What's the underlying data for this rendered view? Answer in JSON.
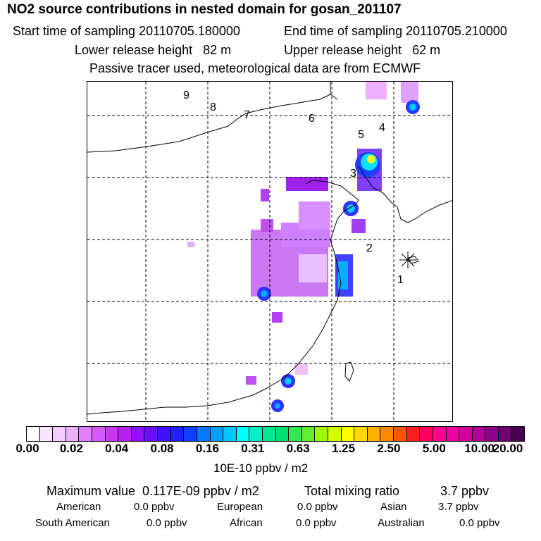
{
  "title": "NO2 source contributions in nested domain for gosan_201107",
  "header": {
    "start_label": "Start time of sampling 20110705.180000",
    "end_label": "End time of sampling 20110705.210000",
    "lower_label": "Lower release height   82 m",
    "upper_label": "Upper release height   62 m",
    "info": "Passive tracer used, meteorological data are from ECMWF"
  },
  "map": {
    "track_labels": [
      "9",
      "8",
      "7",
      "6",
      "5",
      "4",
      "3",
      "2",
      "1"
    ],
    "receptor_marker": "asterisk"
  },
  "colorbar": {
    "tick_labels": [
      "0.00",
      "0.02",
      "0.04",
      "0.08",
      "0.16",
      "0.31",
      "0.63",
      "1.25",
      "2.50",
      "5.00",
      "10.00",
      "20.00"
    ],
    "colors": [
      "#ffffff",
      "#fbe6ff",
      "#f5ccff",
      "#edb0ff",
      "#e080ff",
      "#d45cff",
      "#c838f8",
      "#b820f0",
      "#9010ff",
      "#6a10ff",
      "#4010ff",
      "#2020ff",
      "#1040ff",
      "#0878ff",
      "#00a0ff",
      "#00c8ff",
      "#00ffff",
      "#00f0c8",
      "#00e890",
      "#00e070",
      "#30e850",
      "#60f030",
      "#a0f800",
      "#d0ff00",
      "#ffff00",
      "#ffd800",
      "#ffb000",
      "#ff8800",
      "#ff5500",
      "#ff2020",
      "#ff0060",
      "#ff0090",
      "#f000a0",
      "#d000a0",
      "#b00098",
      "#900088",
      "#700070",
      "#4a0050"
    ],
    "units": "10E-10 ppbv / m2"
  },
  "summary": {
    "maximum": "Maximum value  0.117E-09 ppbv / m2",
    "total": "Total mixing ratio",
    "total_value": "3.7 ppbv",
    "american_label": "American",
    "american_value": "0.0 ppbv",
    "european_label": "European",
    "european_value": "0.0 ppbv",
    "asian_label": "Asian",
    "asian_value": "3.7 ppbv",
    "south_american_label": "South American",
    "south_american_value": "0.0 ppbv",
    "african_label": "African",
    "african_value": "0.0 ppbv",
    "australian_label": "Australian",
    "australian_value": "0.0 ppbv"
  }
}
